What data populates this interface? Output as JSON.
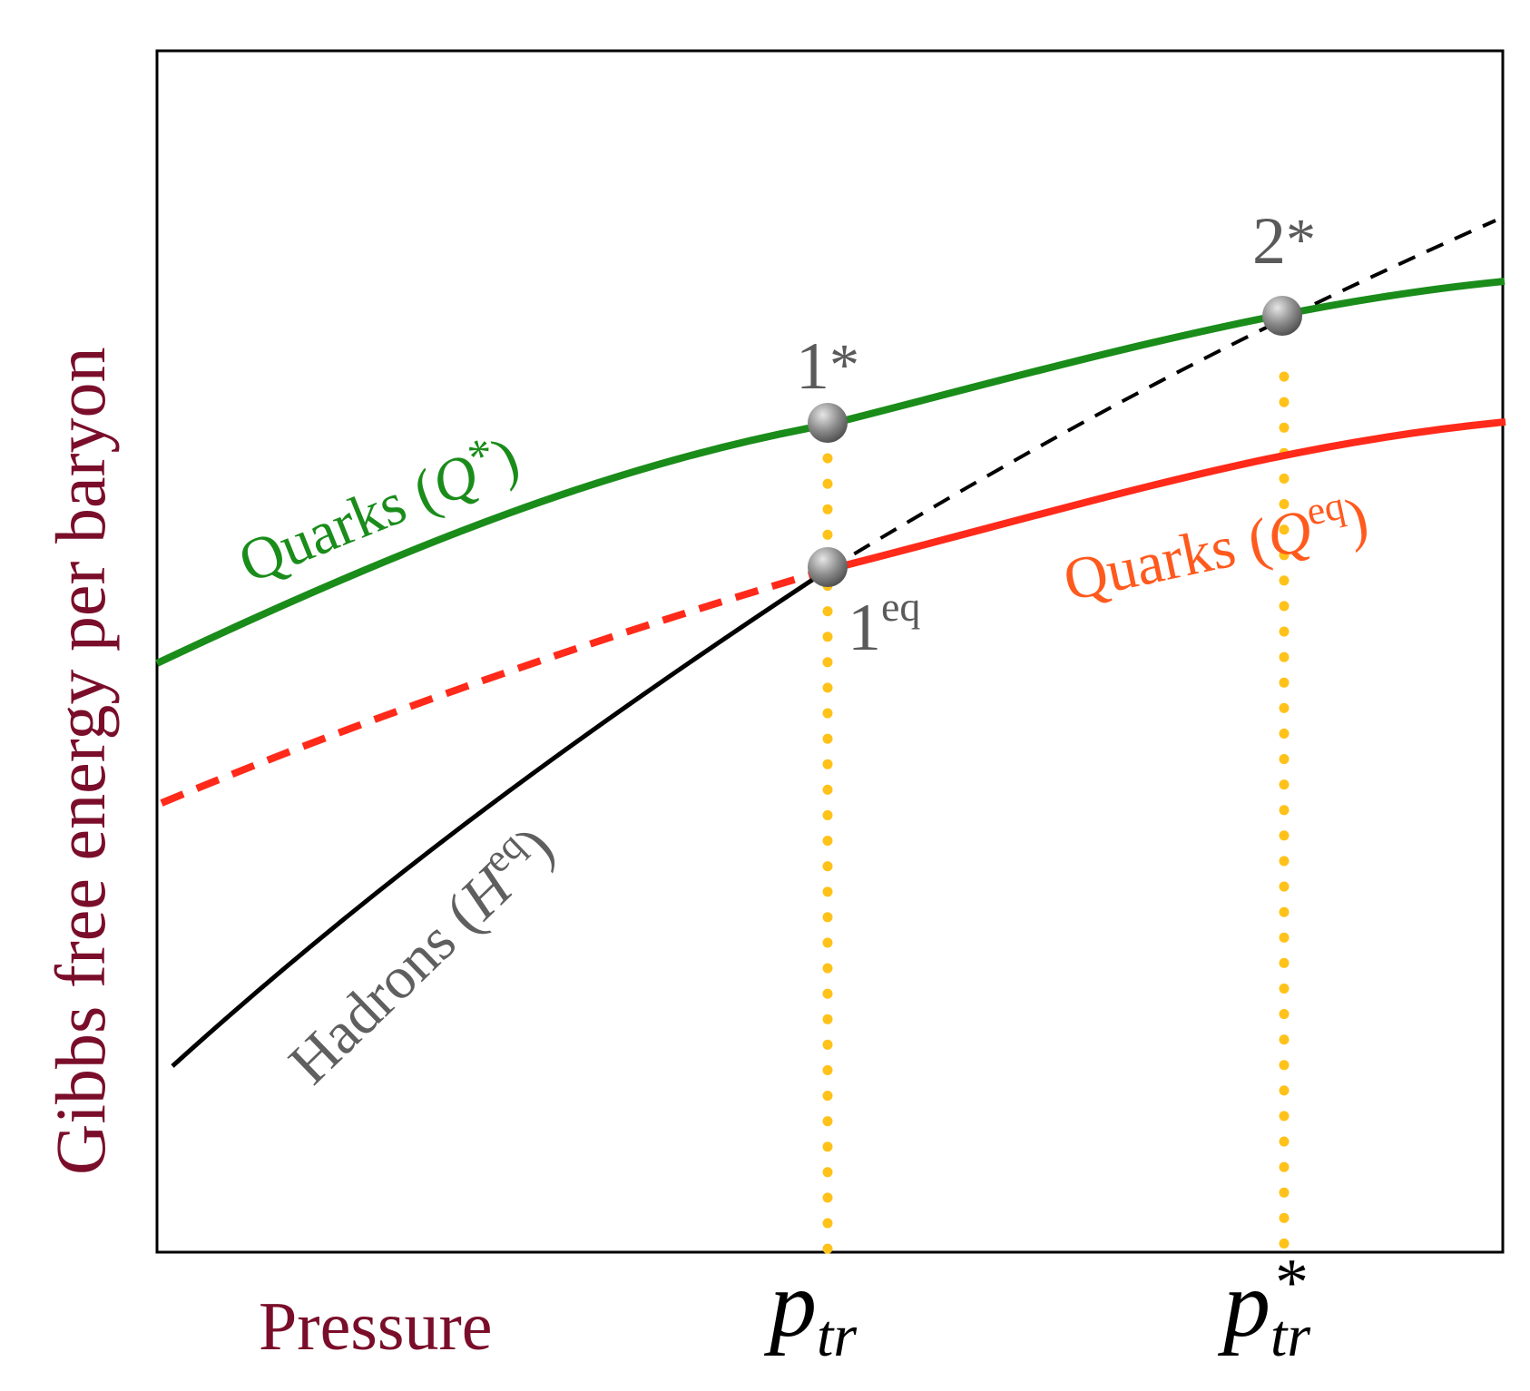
{
  "figure": {
    "y_axis_label": "Gibbs free energy per baryon",
    "x_axis_label": "Pressure",
    "colors": {
      "axis_label": "#7a0e2a",
      "quarks_star": "#1a8c1a",
      "quarks_eq_line": "#ff2a1a",
      "quarks_eq_label": "#ff5a1e",
      "hadrons": "#000000",
      "hadrons_label": "#5f5f5f",
      "point_label": "#5a5a5a",
      "guide": "#ffc21a"
    }
  },
  "curves": {
    "quarks_star": {
      "name": "Quarks",
      "paren_open": "(",
      "symbol": "Q",
      "superscript": "*",
      "paren_close": ")"
    },
    "quarks_eq": {
      "name": "Quarks",
      "paren_open": "(",
      "symbol": "Q",
      "superscript": "eq",
      "paren_close": ")"
    },
    "hadrons_eq": {
      "name": "Hadrons",
      "paren_open": "(",
      "symbol": "H",
      "superscript": "eq",
      "paren_close": ")"
    }
  },
  "points": {
    "one_star": {
      "base": "1",
      "sup": "*"
    },
    "one_eq": {
      "base": "1",
      "sup": "eq"
    },
    "two_star": {
      "base": "2",
      "sup": "*"
    }
  },
  "x_ticks": {
    "p_tr": {
      "symbol": "p",
      "subscript": "tr",
      "superscript": ""
    },
    "p_tr_star": {
      "symbol": "p",
      "subscript": "tr",
      "superscript": "*"
    }
  }
}
